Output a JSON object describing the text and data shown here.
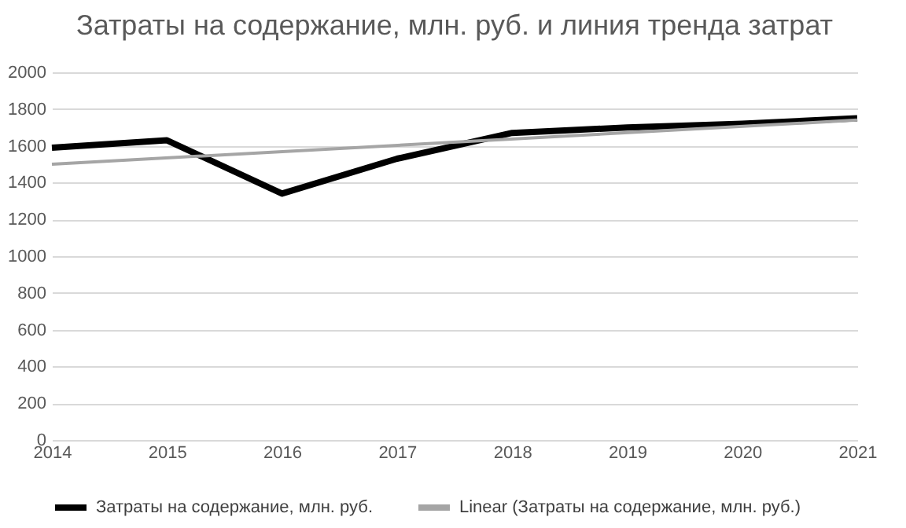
{
  "chart_data": {
    "type": "line",
    "title": "Затраты на содержание, млн. руб. и линия тренда затрат",
    "x": [
      2014,
      2015,
      2016,
      2017,
      2018,
      2019,
      2020,
      2021
    ],
    "series": [
      {
        "name": "Затраты на содержание, млн. руб.",
        "color": "#000000",
        "values": [
          1590,
          1630,
          1340,
          1530,
          1670,
          1700,
          1720,
          1750
        ]
      },
      {
        "name": "Linear (Затраты на содержание, млн. руб.)",
        "color": "#a5a5a5",
        "x": [
          2014,
          2021
        ],
        "values": [
          1500,
          1740
        ]
      }
    ],
    "xlim": [
      2014,
      2021
    ],
    "xticks": [
      2014,
      2015,
      2016,
      2017,
      2018,
      2019,
      2020,
      2021
    ],
    "ylim": [
      0,
      2000
    ],
    "yticks": [
      0,
      200,
      400,
      600,
      800,
      1000,
      1200,
      1400,
      1600,
      1800,
      2000
    ],
    "grid": "y",
    "legend": "bottom",
    "line_style": "solid"
  }
}
